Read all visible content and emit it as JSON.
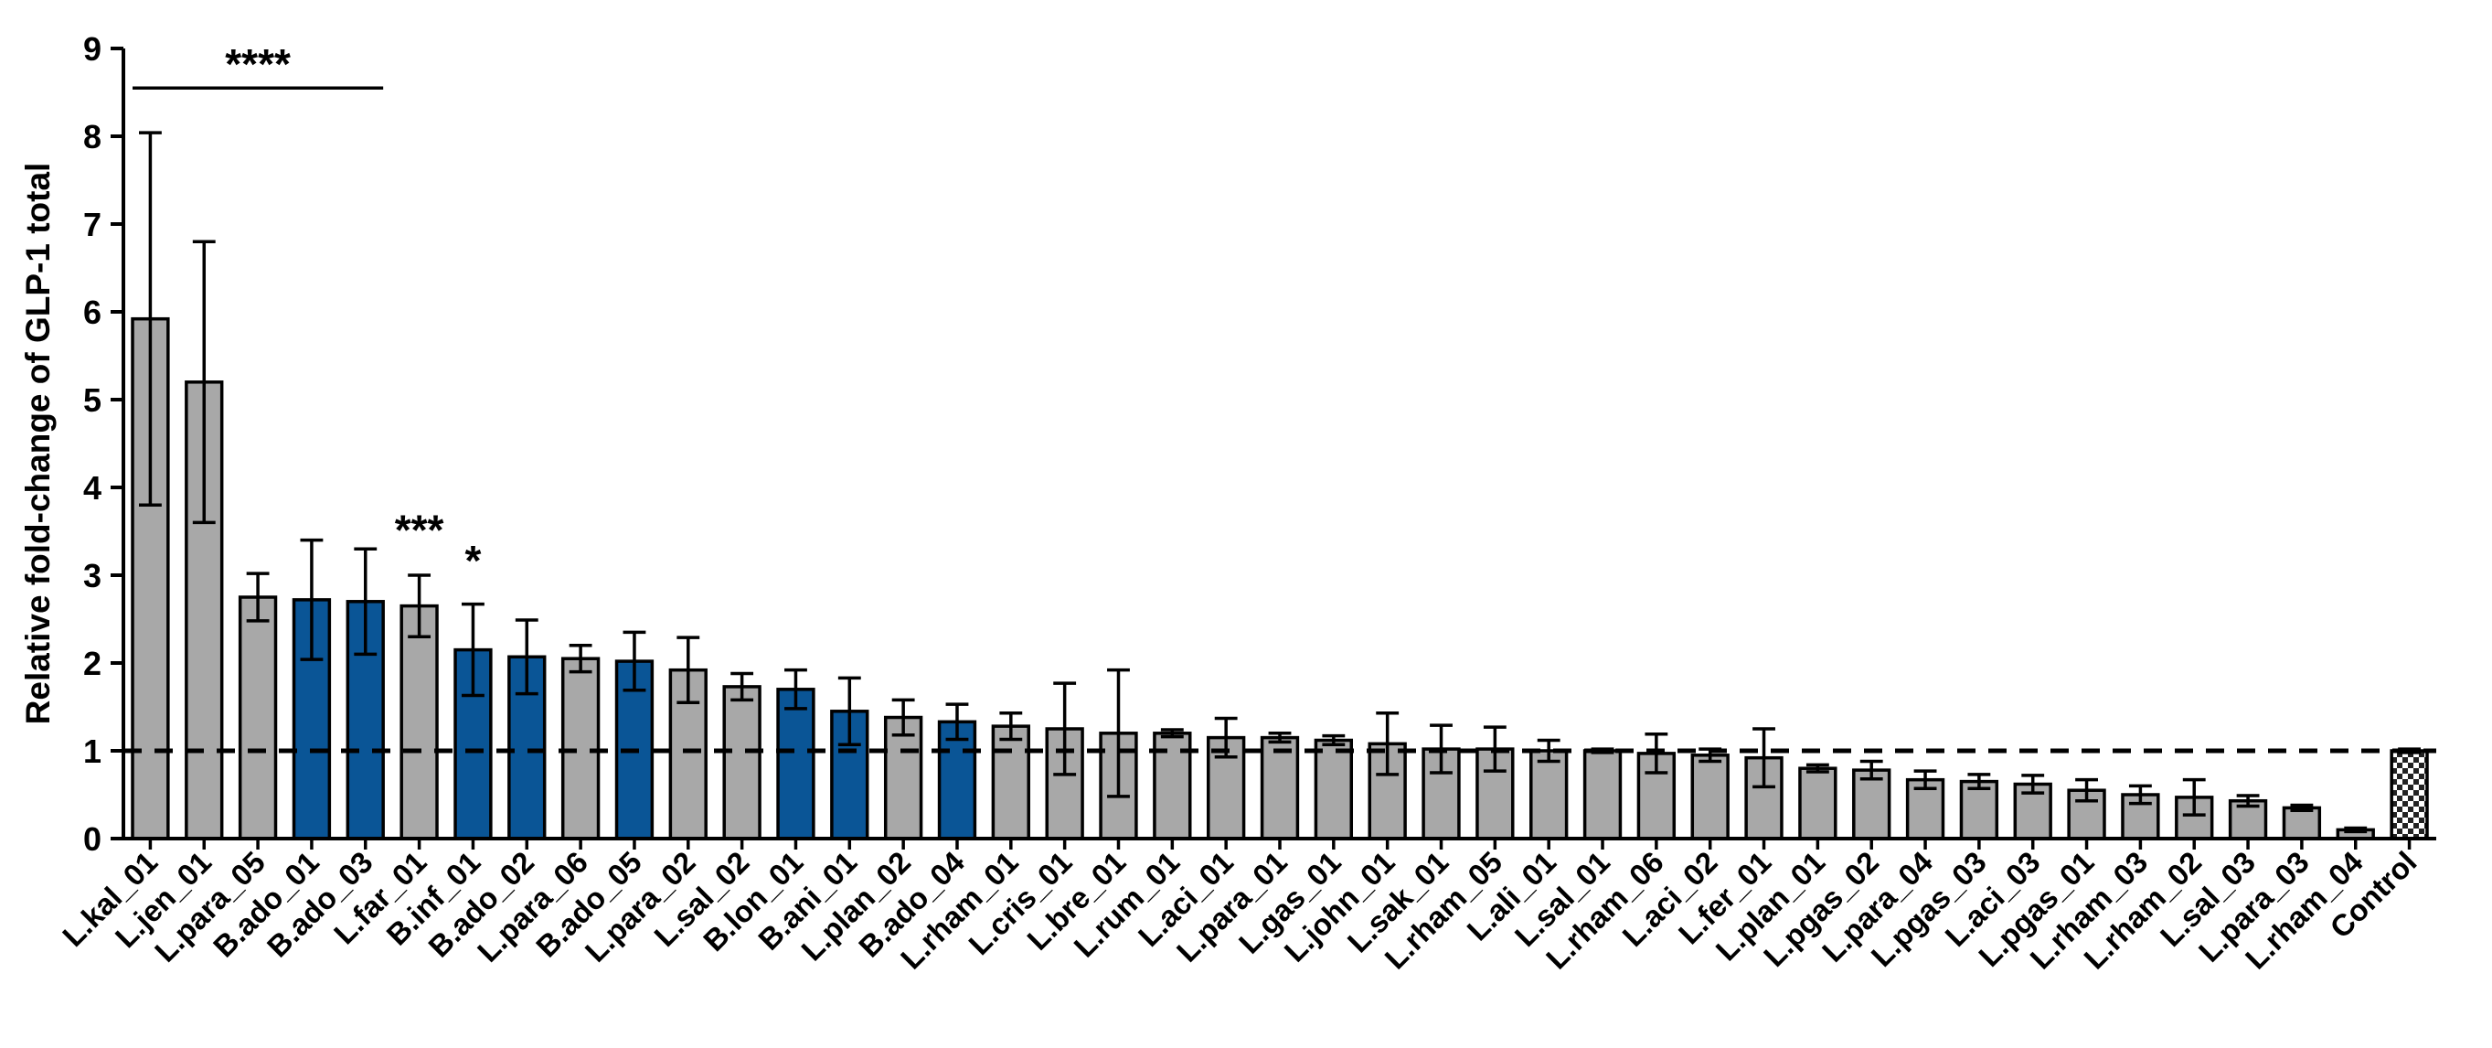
{
  "chart_data": {
    "type": "bar",
    "title": "",
    "xlabel": "",
    "ylabel": "Relative fold-change of GLP-1 total",
    "ylim": [
      0,
      9
    ],
    "yticks": [
      0,
      1,
      2,
      3,
      4,
      5,
      6,
      7,
      8,
      9
    ],
    "grid": false,
    "reference_line": {
      "y": 1,
      "style": "dashed"
    },
    "colors": {
      "gray": "#a8a8a8",
      "blue": "#0a5596",
      "control": "checkered"
    },
    "categories": [
      "L.kal_01",
      "L.jen_01",
      "L.para_05",
      "B.ado_01",
      "B.ado_03",
      "L.far_01",
      "B.inf_01",
      "B.ado_02",
      "L.para_06",
      "B.ado_05",
      "L.para_02",
      "L.sal_02",
      "B.lon_01",
      "B.ani_01",
      "L.plan_02",
      "B.ado_04",
      "L.rham_01",
      "L.cris_01",
      "L.bre_01",
      "L.rum_01",
      "L.aci_01",
      "L.para_01",
      "L.gas_01",
      "L.john_01",
      "L.sak_01",
      "L.rham_05",
      "L.ali_01",
      "L.sal_01",
      "L.rham_06",
      "L.aci_02",
      "L.fer_01",
      "L.plan_01",
      "L.pgas_02",
      "L.para_04",
      "L.pgas_03",
      "L.aci_03",
      "L.pgas_01",
      "L.rham_03",
      "L.rham_02",
      "L.sal_03",
      "L.para_03",
      "L.rham_04",
      "Control"
    ],
    "values": [
      5.92,
      5.2,
      2.75,
      2.72,
      2.7,
      2.65,
      2.15,
      2.07,
      2.05,
      2.02,
      1.92,
      1.73,
      1.7,
      1.45,
      1.38,
      1.33,
      1.28,
      1.25,
      1.2,
      1.2,
      1.15,
      1.15,
      1.12,
      1.08,
      1.02,
      1.02,
      1.0,
      1.0,
      0.97,
      0.95,
      0.92,
      0.8,
      0.78,
      0.67,
      0.65,
      0.62,
      0.55,
      0.5,
      0.47,
      0.43,
      0.35,
      0.1,
      1.0
    ],
    "errors": [
      2.12,
      1.6,
      0.27,
      0.68,
      0.6,
      0.35,
      0.52,
      0.42,
      0.15,
      0.33,
      0.37,
      0.15,
      0.22,
      0.38,
      0.2,
      0.2,
      0.15,
      0.52,
      0.72,
      0.04,
      0.22,
      0.05,
      0.05,
      0.35,
      0.27,
      0.25,
      0.12,
      0.02,
      0.22,
      0.07,
      0.33,
      0.04,
      0.1,
      0.1,
      0.08,
      0.1,
      0.12,
      0.1,
      0.2,
      0.06,
      0.03,
      0.02,
      0.02
    ],
    "bar_colors": [
      "gray",
      "gray",
      "gray",
      "blue",
      "blue",
      "gray",
      "blue",
      "blue",
      "gray",
      "blue",
      "gray",
      "gray",
      "blue",
      "blue",
      "gray",
      "blue",
      "gray",
      "gray",
      "gray",
      "gray",
      "gray",
      "gray",
      "gray",
      "gray",
      "gray",
      "gray",
      "gray",
      "gray",
      "gray",
      "gray",
      "gray",
      "gray",
      "gray",
      "gray",
      "gray",
      "gray",
      "gray",
      "gray",
      "gray",
      "gray",
      "gray",
      "gray",
      "control"
    ],
    "annotations": [
      {
        "text": "****",
        "type": "bracket",
        "from": "L.kal_01",
        "to": "B.ado_03",
        "y": 8.55
      },
      {
        "text": "***",
        "type": "label",
        "at": "L.far_01",
        "y": 3.35
      },
      {
        "text": "*",
        "type": "label",
        "at": "B.inf_01",
        "y": 3.0
      }
    ]
  }
}
